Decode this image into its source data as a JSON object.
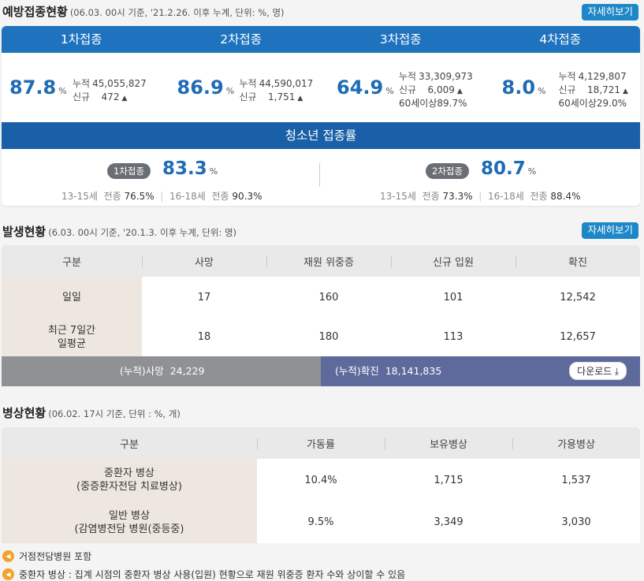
{
  "vaccination": {
    "title": "예방접종현황",
    "subtitle": "(06.03. 00시 기준, '21.2.26. 이후 누계, 단위: %, 명)",
    "more_button": "자세히보기",
    "doses": [
      {
        "label": "1차접종",
        "pct": "87.8",
        "unit": "%",
        "cum_label": "누적",
        "cum": "45,055,827",
        "new_label": "신규",
        "new": "472",
        "extra": ""
      },
      {
        "label": "2차접종",
        "pct": "86.9",
        "unit": "%",
        "cum_label": "누적",
        "cum": "44,590,017",
        "new_label": "신규",
        "new": "1,751",
        "extra": ""
      },
      {
        "label": "3차접종",
        "pct": "64.9",
        "unit": "%",
        "cum_label": "누적",
        "cum": "33,309,973",
        "new_label": "신규",
        "new": "6,009",
        "extra": "60세이상89.7%"
      },
      {
        "label": "4차접종",
        "pct": "8.0",
        "unit": "%",
        "cum_label": "누적",
        "cum": "4,129,807",
        "new_label": "신규",
        "new": "18,721",
        "extra": "60세이상29.0%"
      }
    ],
    "teen_title": "청소년 접종률",
    "teen": [
      {
        "badge": "1차접종",
        "pct": "83.3",
        "unit": "%",
        "a_age": "13-15세",
        "a_label": "전종",
        "a_val": "76.5%",
        "b_age": "16-18세",
        "b_label": "전종",
        "b_val": "90.3%"
      },
      {
        "badge": "2차접종",
        "pct": "80.7",
        "unit": "%",
        "a_age": "13-15세",
        "a_label": "전종",
        "a_val": "73.3%",
        "b_age": "16-18세",
        "b_label": "전종",
        "b_val": "88.4%"
      }
    ]
  },
  "outbreak": {
    "title": "발생현황",
    "subtitle": "(6.03. 00시 기준, '20.1.3. 이후 누계, 단위: 명)",
    "more_button": "자세히보기",
    "headers": [
      "구분",
      "사망",
      "재원 위중증",
      "신규 입원",
      "확진"
    ],
    "rows": [
      {
        "label": [
          "일일"
        ],
        "cells": [
          "17",
          "160",
          "101",
          "12,542"
        ]
      },
      {
        "label": [
          "최근 7일간",
          "일평균"
        ],
        "cells": [
          "18",
          "180",
          "113",
          "12,657"
        ]
      }
    ],
    "cum_death_label": "(누적)사망",
    "cum_death": "24,229",
    "cum_conf_label": "(누적)확진",
    "cum_conf": "18,141,835",
    "download_button": "다운로드"
  },
  "beds": {
    "title": "병상현황",
    "subtitle": "(06.02. 17시 기준, 단위 : %, 개)",
    "headers": [
      "구분",
      "가동률",
      "보유병상",
      "가용병상"
    ],
    "rows": [
      {
        "label": [
          "중환자 병상",
          "(중증환자전담 치료병상)"
        ],
        "cells": [
          "10.4%",
          "1,715",
          "1,537"
        ]
      },
      {
        "label": [
          "일반 병상",
          "(감염병전담 병원(중등중)"
        ],
        "cells": [
          "9.5%",
          "3,349",
          "3,030"
        ]
      }
    ]
  },
  "notes": [
    "거점전담병원 포함",
    "중환자 병상 : 집계 시점의 중환자 병상 사용(입원) 현황으로 재원 위중증 환자 수와 상이할 수 있음"
  ],
  "colors": {
    "accent": "#1f73be",
    "teen_bar": "#1a60a8",
    "cum_conf": "#5f6a9c",
    "note_icon": "#f3a22a"
  }
}
